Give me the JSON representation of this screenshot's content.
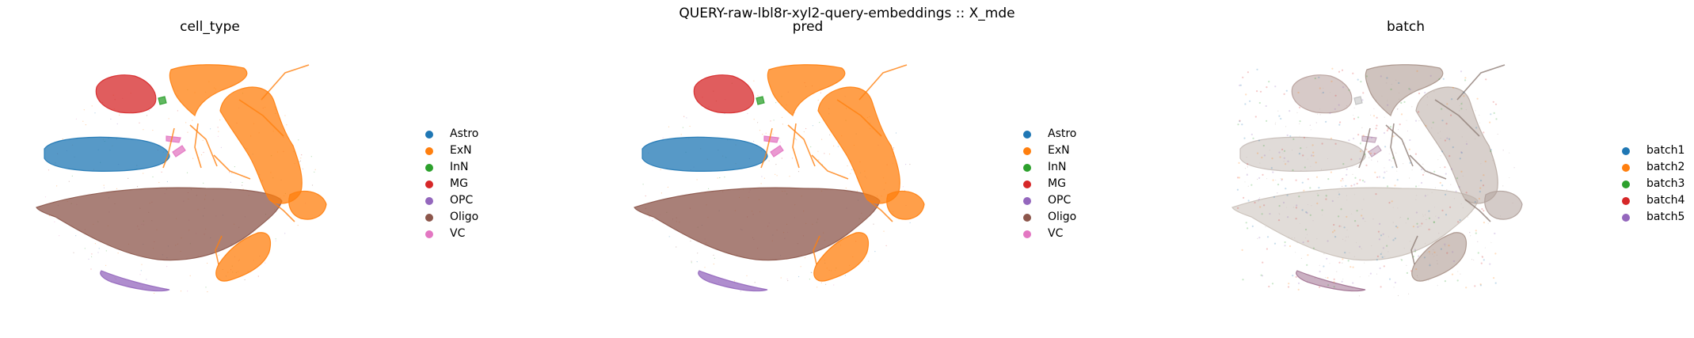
{
  "suptitle": "QUERY-raw-lbl8r-xyl2-query-embeddings :: X_mde",
  "chart_data": [
    {
      "type": "scatter",
      "title": "cell_type",
      "xlabel": "",
      "ylabel": "",
      "axes": "off",
      "grid": false,
      "legend_position": "right",
      "legend": [
        {
          "label": "Astro",
          "color": "#1f77b4"
        },
        {
          "label": "ExN",
          "color": "#ff7f0e"
        },
        {
          "label": "InN",
          "color": "#2ca02c"
        },
        {
          "label": "MG",
          "color": "#d62728"
        },
        {
          "label": "OPC",
          "color": "#9467bd"
        },
        {
          "label": "Oligo",
          "color": "#8c564b"
        },
        {
          "label": "VC",
          "color": "#e377c2"
        }
      ]
    },
    {
      "type": "scatter",
      "title": "pred",
      "xlabel": "",
      "ylabel": "",
      "axes": "off",
      "grid": false,
      "legend_position": "right",
      "legend": [
        {
          "label": "Astro",
          "color": "#1f77b4"
        },
        {
          "label": "ExN",
          "color": "#ff7f0e"
        },
        {
          "label": "InN",
          "color": "#2ca02c"
        },
        {
          "label": "MG",
          "color": "#d62728"
        },
        {
          "label": "OPC",
          "color": "#9467bd"
        },
        {
          "label": "Oligo",
          "color": "#8c564b"
        },
        {
          "label": "VC",
          "color": "#e377c2"
        }
      ]
    },
    {
      "type": "scatter",
      "title": "batch",
      "xlabel": "",
      "ylabel": "",
      "axes": "off",
      "grid": false,
      "legend_position": "right",
      "legend": [
        {
          "label": "batch1",
          "color": "#1f77b4"
        },
        {
          "label": "batch2",
          "color": "#ff7f0e"
        },
        {
          "label": "batch3",
          "color": "#2ca02c"
        },
        {
          "label": "batch4",
          "color": "#d62728"
        },
        {
          "label": "batch5",
          "color": "#9467bd"
        }
      ]
    }
  ]
}
